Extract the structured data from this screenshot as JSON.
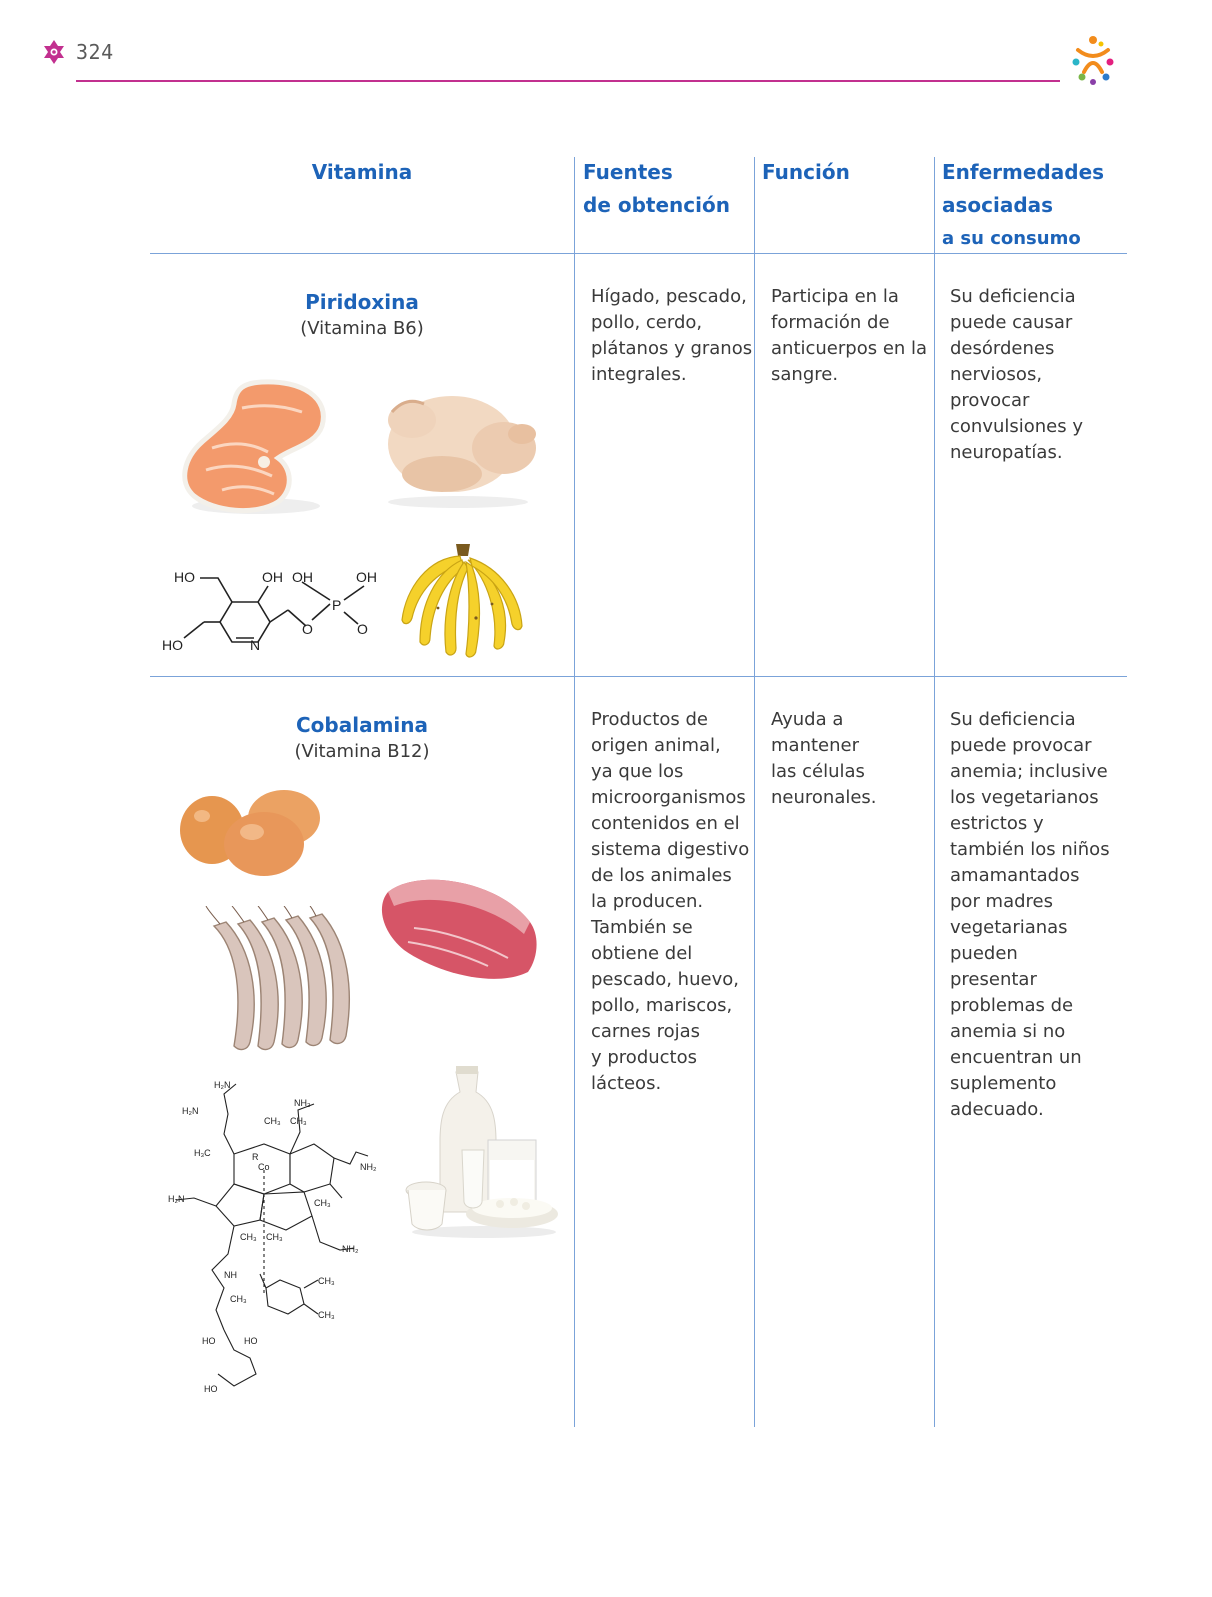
{
  "header": {
    "page_number": "324"
  },
  "table": {
    "headers": [
      [
        "Vitamina"
      ],
      [
        "Fuentes",
        "de obtención"
      ],
      [
        "Función"
      ],
      [
        "Enfermedades",
        "asociadas",
        "a su consumo"
      ]
    ],
    "rows": [
      {
        "name": "Piridoxina",
        "subtitle": "(Vitamina B6)",
        "fuentes": "Hígado, pescado,\npollo, cerdo,\nplátanos y granos\nintegrales.",
        "funcion": "Participa en la\nformación de\nanticuerpos en la\nsangre.",
        "enfermedades": "Su deficiencia\npuede causar\ndesórdenes\nnerviosos,\nprovocar\nconvulsiones y\nneuropatías.",
        "formula_labels": [
          "HO",
          "OH",
          "OH",
          "OH",
          "P",
          "O",
          "O",
          "N",
          "HO"
        ]
      },
      {
        "name": "Cobalamina",
        "subtitle": "(Vitamina B12)",
        "fuentes": "Productos de\norigen animal,\nya que los\nmicroorganismos\ncontenidos en el\nsistema digestivo\nde los animales\nla producen.\nTambién se\nobtiene del\npescado, huevo,\npollo, mariscos,\ncarnes rojas\ny productos\nlácteos.",
        "funcion": "Ayuda a\nmantener\nlas células\nneuronales.",
        "enfermedades": "Su deficiencia\npuede provocar\nanemia; inclusive\nlos vegetarianos\nestrictos y\ntambién los niños\namamantados\npor madres\nvegetarianas\npueden\npresentar\nproblemas de\nanemia si no\nencuentran un\nsuplemento\nadecuado."
      }
    ]
  },
  "colors": {
    "accent_blue": "#1d63b8",
    "rule_magenta": "#c2308f",
    "grid_blue": "#7ba3d9"
  },
  "icons": [
    "ornament-icon",
    "dancing-figures-logo-icon"
  ]
}
